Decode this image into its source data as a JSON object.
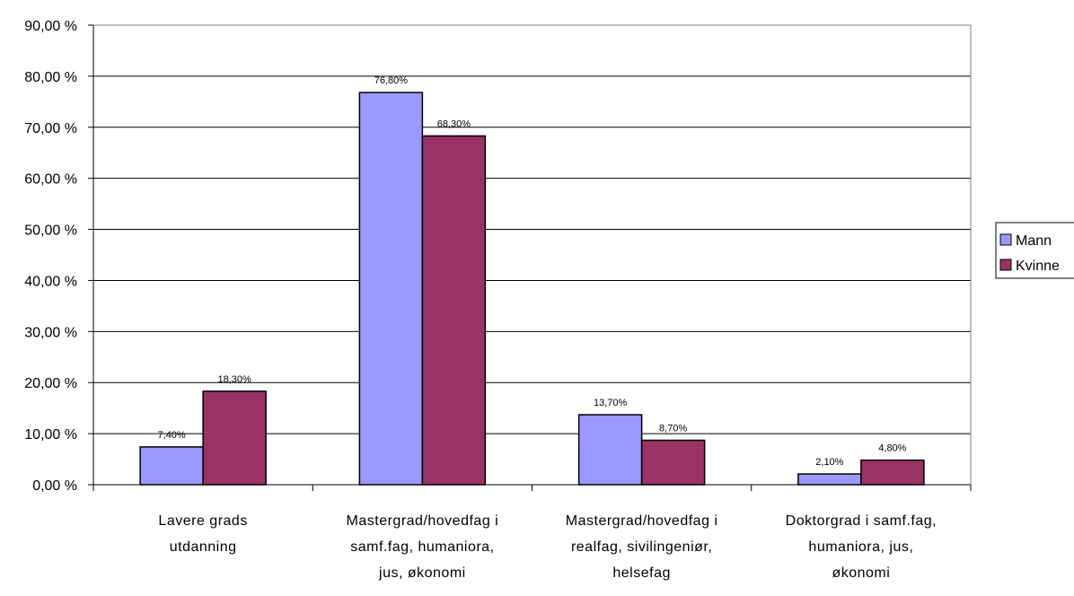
{
  "chart_data": {
    "type": "bar",
    "categories": [
      [
        "Lavere grads",
        "utdanning"
      ],
      [
        "Mastergrad/hovedfag i",
        "samf.fag, humaniora,",
        "jus, økonomi"
      ],
      [
        "Mastergrad/hovedfag i",
        "realfag, sivilingeniør,",
        "helsefag"
      ],
      [
        "Doktorgrad i samf.fag,",
        "humaniora, jus,",
        "økonomi"
      ]
    ],
    "series": [
      {
        "name": "Mann",
        "values": [
          7.4,
          76.8,
          13.7,
          2.1
        ],
        "labels": [
          "7,40%",
          "76,80%",
          "13,70%",
          "2,10%"
        ],
        "color": "#9999ff"
      },
      {
        "name": "Kvinne",
        "values": [
          18.3,
          68.3,
          8.7,
          4.8
        ],
        "labels": [
          "18,30%",
          "68,30%",
          "8,70%",
          "4,80%"
        ],
        "color": "#993366"
      }
    ],
    "ylim": [
      0,
      90
    ],
    "yticks": [
      "0,00 %",
      "10,00 %",
      "20,00 %",
      "30,00 %",
      "40,00 %",
      "50,00 %",
      "60,00 %",
      "70,00 %",
      "80,00 %",
      "90,00 %"
    ],
    "title": "",
    "xlabel": "",
    "ylabel": "",
    "grid": true,
    "legend_position": "right"
  }
}
